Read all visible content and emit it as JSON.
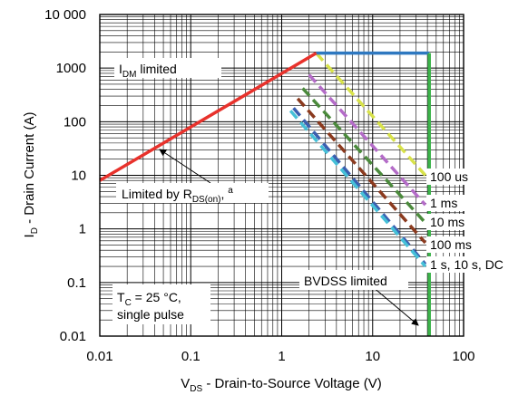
{
  "chart_data": {
    "type": "line",
    "scale": {
      "x": "log",
      "y": "log"
    },
    "xlim": [
      0.01,
      100
    ],
    "ylim": [
      0.01,
      10000
    ],
    "grid": true,
    "x_ticks": [
      "0.01",
      "0.1",
      "1",
      "10",
      "100"
    ],
    "y_ticks": [
      "0.01",
      "0.1",
      "1",
      "10",
      "100",
      "1000",
      "10 000"
    ],
    "xlabel": {
      "main": "V",
      "sub": "DS",
      "rest": " - Drain-to-Source Voltage (V)"
    },
    "ylabel": {
      "main": "I",
      "sub": "D",
      "rest": " - Drain Current (A)"
    },
    "colors": {
      "idm": "#2e78c0",
      "rds": "#e8322c",
      "bvdss": "#3cb44a",
      "us100": "#d8e24a",
      "ms1": "#b46cc8",
      "ms10": "#4b8a3c",
      "ms100": "#8b3a1e",
      "dc": "#3a5fb0",
      "dc2": "#46c0d8"
    },
    "series": [
      {
        "name": "I_DM limited",
        "style": "solid",
        "color_key": "idm",
        "points": [
          [
            2.4,
            1900
          ],
          [
            42,
            1900
          ]
        ]
      },
      {
        "name": "Limited by R_DS(on)",
        "style": "solid",
        "color_key": "rds",
        "points": [
          [
            0.01,
            8
          ],
          [
            2.4,
            1900
          ]
        ]
      },
      {
        "name": "BVDSS limited",
        "style": "solid",
        "color_key": "bvdss",
        "points": [
          [
            42,
            0.01
          ],
          [
            42,
            1900
          ]
        ]
      },
      {
        "name": "100 us",
        "style": "dashed",
        "color_key": "us100",
        "points": [
          [
            2.4,
            1900
          ],
          [
            38,
            10
          ]
        ]
      },
      {
        "name": "1 ms",
        "style": "dashed",
        "color_key": "ms1",
        "points": [
          [
            2.0,
            750
          ],
          [
            38,
            2.8
          ]
        ]
      },
      {
        "name": "10 ms",
        "style": "dashed",
        "color_key": "ms10",
        "points": [
          [
            1.7,
            420
          ],
          [
            38,
            1.3
          ]
        ]
      },
      {
        "name": "100 ms",
        "style": "dashed",
        "color_key": "ms100",
        "points": [
          [
            1.5,
            270
          ],
          [
            38,
            0.55
          ]
        ]
      },
      {
        "name": "1 s, 10 s, DC",
        "style": "dashed",
        "color_key": "dc",
        "points": [
          [
            1.35,
            180
          ],
          [
            38,
            0.22
          ]
        ]
      },
      {
        "name": "1 s, 10 s, DC",
        "style": "dashed",
        "color_key": "dc2",
        "points": [
          [
            1.25,
            160
          ],
          [
            38,
            0.2
          ]
        ]
      }
    ],
    "annotations": {
      "idm": {
        "main": "I",
        "sub": "DM",
        "rest": " limited"
      },
      "rds": {
        "main": "Limited by R",
        "sub": "DS(on)",
        "rest": ", ",
        "sup": "a"
      },
      "bvdss": "BVDSS limited",
      "curve_labels": [
        "100 us",
        "1 ms",
        "10 ms",
        "100 ms",
        "1 s, 10 s, DC"
      ],
      "conditions": {
        "line1": {
          "main": "T",
          "sub": "C",
          "rest": " = 25 °C,"
        },
        "line2": "single pulse"
      }
    }
  }
}
